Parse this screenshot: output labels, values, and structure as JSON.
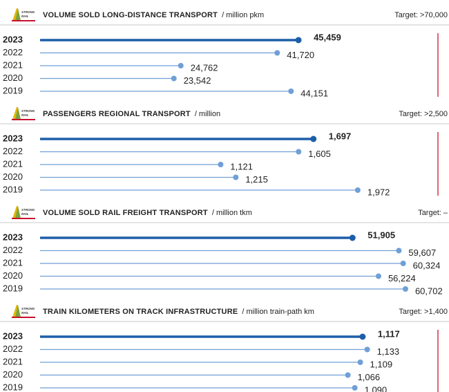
{
  "chart_data": [
    {
      "type": "lollipop",
      "logo": [
        "STRONG",
        "RAIL"
      ],
      "title": "VOLUME SOLD LONG-DISTANCE TRANSPORT",
      "unit": "/  million pkm",
      "target": "Target: >70,000",
      "categories": [
        "2023",
        "2022",
        "2021",
        "2020",
        "2019"
      ],
      "values": [
        45459,
        41720,
        24762,
        23542,
        44151
      ],
      "value_labels": [
        "45,459",
        "41,720",
        "24,762",
        "23,542",
        "44,151"
      ],
      "highlight": [
        true,
        false,
        false,
        false,
        false
      ],
      "color": "#6f9fd6",
      "highlight_color": "#1d5ea8",
      "xlim": [
        0,
        70000
      ],
      "target_marker": true
    },
    {
      "type": "lollipop",
      "logo": [
        "STRONG",
        "RAIL"
      ],
      "title": "PASSENGERS REGIONAL TRANSPORT",
      "unit": "/  million",
      "target": "Target: >2,500",
      "categories": [
        "2023",
        "2022",
        "2021",
        "2020",
        "2019"
      ],
      "values": [
        1697,
        1605,
        1121,
        1215,
        1972
      ],
      "value_labels": [
        "1,697",
        "1,605",
        "1,121",
        "1,215",
        "1,972"
      ],
      "highlight": [
        true,
        false,
        false,
        false,
        false
      ],
      "color": "#6f9fd6",
      "highlight_color": "#1d5ea8",
      "xlim": [
        0,
        2470
      ],
      "target_marker": true
    },
    {
      "type": "lollipop",
      "logo": [
        "STRONG",
        "RAIL"
      ],
      "title": "VOLUME SOLD RAIL FREIGHT TRANSPORT",
      "unit": "/  million tkm",
      "target": "Target: –",
      "categories": [
        "2023",
        "2022",
        "2021",
        "2020",
        "2019"
      ],
      "values": [
        51905,
        59607,
        60324,
        56224,
        60702
      ],
      "value_labels": [
        "51,905",
        "59,607",
        "60,324",
        "56,224",
        "60,702"
      ],
      "highlight": [
        true,
        false,
        false,
        false,
        false
      ],
      "color": "#6f9fd6",
      "highlight_color": "#1d5ea8",
      "xlim": [
        0,
        66100
      ],
      "target_marker": false
    },
    {
      "type": "lollipop",
      "logo": [
        "STRONG",
        "RAIL"
      ],
      "title": "TRAIN KILOMETERS ON TRACK INFRASTRUCTURE",
      "unit": "/  million train-path km",
      "target": "Target: >1,400",
      "categories": [
        "2023",
        "2022",
        "2021",
        "2020",
        "2019"
      ],
      "values": [
        1117,
        1133,
        1109,
        1066,
        1090
      ],
      "value_labels": [
        "1,117",
        "1,133",
        "1,109",
        "1,066",
        "1,090"
      ],
      "highlight": [
        true,
        false,
        false,
        false,
        false
      ],
      "color": "#6f9fd6",
      "highlight_color": "#1d5ea8",
      "xlim": [
        0,
        1378
      ],
      "target_marker": true
    }
  ]
}
